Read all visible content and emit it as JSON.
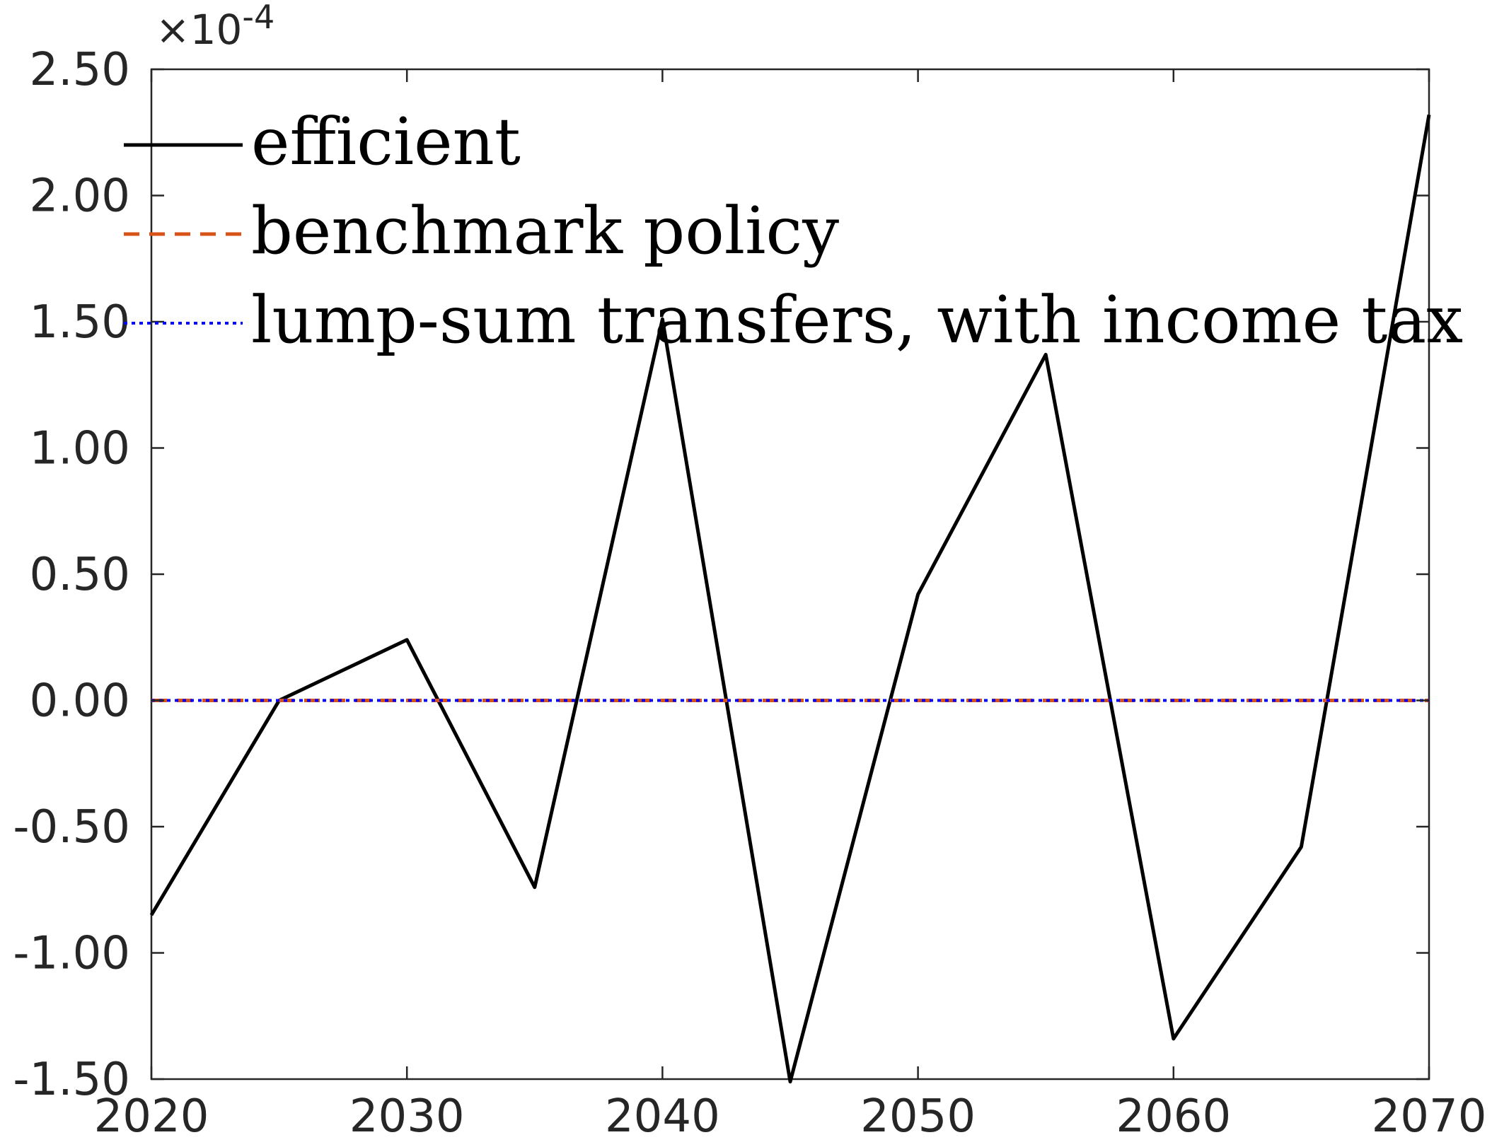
{
  "chart_data": {
    "type": "line",
    "title": "",
    "xlabel": "",
    "ylabel": "",
    "y_exponent": "×10",
    "y_exponent_power": "-4",
    "xlim": [
      2020,
      2070
    ],
    "ylim": [
      -1.5,
      2.5
    ],
    "x_ticks": [
      2020,
      2030,
      2040,
      2050,
      2060,
      2070
    ],
    "x_tick_labels": [
      "2020",
      "2030",
      "2040",
      "2050",
      "2060",
      "2070"
    ],
    "y_ticks": [
      2.5,
      2.0,
      1.5,
      1.0,
      0.5,
      0.0,
      -0.5,
      -1.0,
      -1.5
    ],
    "y_tick_labels": [
      "2.50",
      "2.00",
      "1.50",
      "1.00",
      "0.50",
      "0.00",
      "-0.50",
      "-1.00",
      "-1.50"
    ],
    "grid": false,
    "legend_position": "top-left",
    "x": [
      2020,
      2025,
      2030,
      2035,
      2040,
      2045,
      2050,
      2055,
      2060,
      2065,
      2070
    ],
    "series": [
      {
        "name": "efficient",
        "color": "#000000",
        "style": "solid",
        "values": [
          -0.85,
          0.0,
          0.24,
          -0.74,
          1.51,
          -1.51,
          0.42,
          1.37,
          -1.34,
          -0.58,
          2.32
        ]
      },
      {
        "name": "benchmark policy",
        "color": "#D95319",
        "style": "dashed",
        "values": [
          0,
          0,
          0,
          0,
          0,
          0,
          0,
          0,
          0,
          0,
          0
        ]
      },
      {
        "name": "lump-sum transfers, with income tax",
        "color": "#0000FF",
        "style": "dotted",
        "values": [
          0,
          0,
          0,
          0,
          0,
          0,
          0,
          0,
          0,
          0,
          0
        ]
      }
    ]
  }
}
